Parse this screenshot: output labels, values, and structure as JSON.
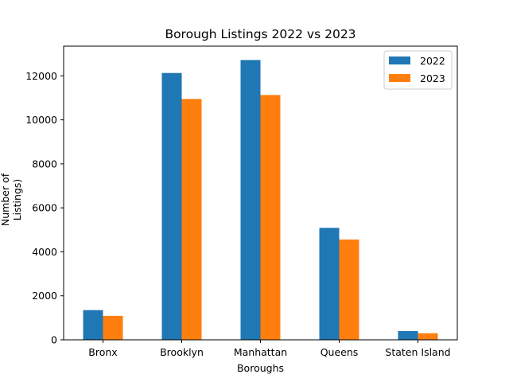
{
  "chart_data": {
    "type": "bar",
    "title": "Borough Listings 2022 vs 2023",
    "xlabel": "Boroughs",
    "ylabel": "Number of Listings)",
    "categories": [
      "Bronx",
      "Brooklyn",
      "Manhattan",
      "Queens",
      "Staten Island"
    ],
    "series": [
      {
        "name": "2022",
        "color": "#1f77b4",
        "values": [
          1350,
          12130,
          12720,
          5090,
          400
        ]
      },
      {
        "name": "2023",
        "color": "#ff7f0e",
        "values": [
          1090,
          10950,
          11130,
          4560,
          300
        ]
      }
    ],
    "ylim": [
      0,
      13350
    ],
    "yticks": [
      0,
      2000,
      4000,
      6000,
      8000,
      10000,
      12000
    ],
    "legend_position": "top-right",
    "grid": false
  }
}
